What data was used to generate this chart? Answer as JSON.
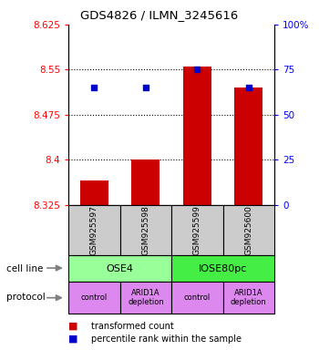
{
  "title": "GDS4826 / ILMN_3245616",
  "samples": [
    "GSM925597",
    "GSM925598",
    "GSM925599",
    "GSM925600"
  ],
  "bar_values": [
    8.365,
    8.4,
    8.555,
    8.52
  ],
  "bar_bottom": 8.325,
  "blue_values": [
    65,
    65,
    75,
    65
  ],
  "ylim_left": [
    8.325,
    8.625
  ],
  "ylim_right": [
    0,
    100
  ],
  "yticks_left": [
    8.325,
    8.4,
    8.475,
    8.55,
    8.625
  ],
  "ytick_labels_left": [
    "8.325",
    "8.4",
    "8.475",
    "8.55",
    "8.625"
  ],
  "yticks_right": [
    0,
    25,
    50,
    75,
    100
  ],
  "ytick_labels_right": [
    "0",
    "25",
    "50",
    "75",
    "100%"
  ],
  "bar_color": "#cc0000",
  "blue_color": "#0000cc",
  "cell_line_color_ose4": "#99ff99",
  "cell_line_color_iose": "#44ee44",
  "cell_lines": [
    "OSE4",
    "IOSE80pc"
  ],
  "protocol_color": "#dd88ee",
  "protocols": [
    "control",
    "ARID1A\ndepletion",
    "control",
    "ARID1A\ndepletion"
  ],
  "sample_bg_color": "#cccccc",
  "bar_width": 0.55,
  "grid_dotted_ticks": [
    8.4,
    8.475,
    8.55
  ],
  "figwidth": 3.5,
  "figheight": 3.84,
  "dpi": 100
}
